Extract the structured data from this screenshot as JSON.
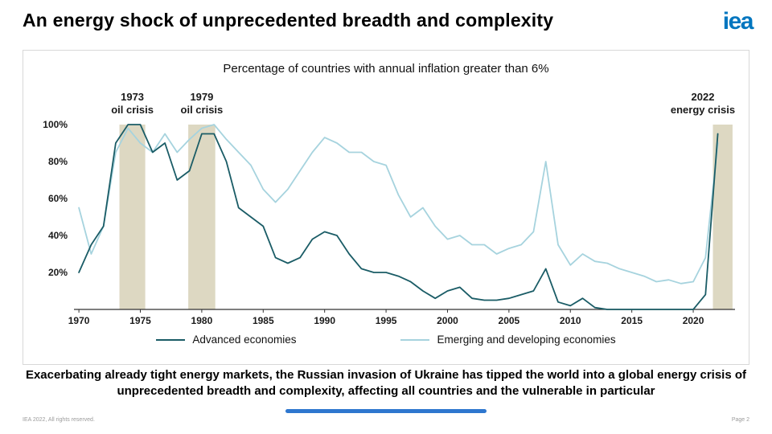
{
  "slide": {
    "title": "An energy shock of unprecedented breadth and complexity",
    "logo_text": "iea",
    "takeaway": "Exacerbating already tight energy markets, the Russian invasion of Ukraine has tipped the world into a global energy crisis of unprecedented breadth and complexity, affecting all countries and the vulnerable in particular",
    "footer_left": "IEA 2022, All rights reserved.",
    "footer_right": "Page 2",
    "accent_bar_color": "#2e77cf",
    "logo_color": "#0076bf"
  },
  "chart_data": {
    "type": "line",
    "title": "Percentage of countries with annual inflation greater than 6%",
    "xlabel": "",
    "ylabel": "",
    "ylim": [
      0,
      100
    ],
    "yticks": [
      20,
      40,
      60,
      80,
      100
    ],
    "xticks": [
      1970,
      1975,
      1980,
      1985,
      1990,
      1995,
      2000,
      2005,
      2010,
      2015,
      2020
    ],
    "grid": false,
    "legend_position": "bottom",
    "band_color": "#ddd8c2",
    "x": [
      1970,
      1971,
      1972,
      1973,
      1974,
      1975,
      1976,
      1977,
      1978,
      1979,
      1980,
      1981,
      1982,
      1983,
      1984,
      1985,
      1986,
      1987,
      1988,
      1989,
      1990,
      1991,
      1992,
      1993,
      1994,
      1995,
      1996,
      1997,
      1998,
      1999,
      2000,
      2001,
      2002,
      2003,
      2004,
      2005,
      2006,
      2007,
      2008,
      2009,
      2010,
      2011,
      2012,
      2013,
      2014,
      2015,
      2016,
      2017,
      2018,
      2019,
      2020,
      2021,
      2022
    ],
    "series": [
      {
        "name": "Advanced economies",
        "color": "#1a5c66",
        "values": [
          20,
          35,
          45,
          90,
          100,
          100,
          85,
          90,
          70,
          75,
          95,
          95,
          80,
          55,
          50,
          45,
          28,
          25,
          28,
          38,
          42,
          40,
          30,
          22,
          20,
          20,
          18,
          15,
          10,
          6,
          10,
          12,
          6,
          5,
          5,
          6,
          8,
          10,
          22,
          4,
          2,
          6,
          1,
          0,
          0,
          0,
          0,
          0,
          0,
          0,
          0,
          8,
          95
        ]
      },
      {
        "name": "Emerging and developing economies",
        "color": "#a6d3de",
        "values": [
          55,
          30,
          45,
          85,
          98,
          90,
          85,
          95,
          85,
          92,
          98,
          100,
          92,
          85,
          78,
          65,
          58,
          65,
          75,
          85,
          93,
          90,
          85,
          85,
          80,
          78,
          62,
          50,
          55,
          45,
          38,
          40,
          35,
          35,
          30,
          33,
          35,
          42,
          80,
          35,
          24,
          30,
          26,
          25,
          22,
          20,
          18,
          15,
          16,
          14,
          15,
          28,
          90
        ]
      }
    ],
    "bands": [
      {
        "year": "1973",
        "label": "oil crisis",
        "x0": 1973.3,
        "x1": 1975.4
      },
      {
        "year": "1979",
        "label": "oil crisis",
        "x0": 1978.9,
        "x1": 1981.1
      },
      {
        "year": "2022",
        "label": "energy crisis",
        "x0": 2021.6,
        "x1": 2023.2
      }
    ]
  }
}
